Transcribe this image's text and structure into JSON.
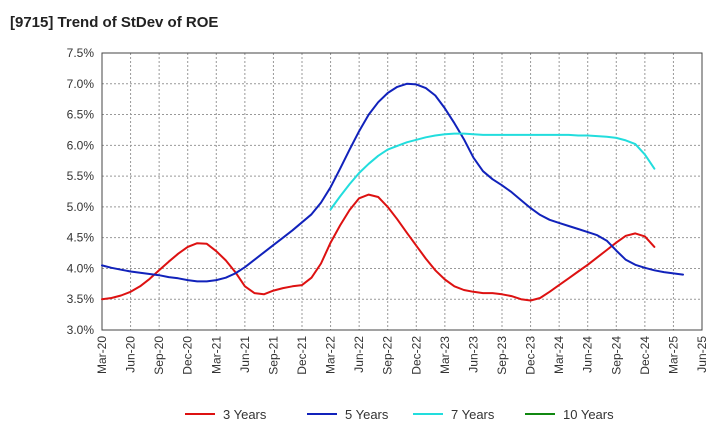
{
  "title": "[9715]  Trend of StDev of ROE",
  "chart_data": {
    "type": "line",
    "title": "[9715]  Trend of StDev of ROE",
    "xlabel": "",
    "ylabel": "",
    "x_ticks": [
      "Mar-20",
      "Jun-20",
      "Sep-20",
      "Dec-20",
      "Mar-21",
      "Jun-21",
      "Sep-21",
      "Dec-21",
      "Mar-22",
      "Jun-22",
      "Sep-22",
      "Dec-22",
      "Mar-23",
      "Jun-23",
      "Sep-23",
      "Dec-23",
      "Mar-24",
      "Jun-24",
      "Sep-24",
      "Dec-24",
      "Mar-25",
      "Jun-25"
    ],
    "y_ticks": [
      "3.0%",
      "3.5%",
      "4.0%",
      "4.5%",
      "5.0%",
      "5.5%",
      "6.0%",
      "6.5%",
      "7.0%",
      "7.5%"
    ],
    "ylim": [
      3.0,
      7.5
    ],
    "grid": true,
    "legend_position": "bottom",
    "series": [
      {
        "name": "3 Years",
        "color": "#dd1111",
        "start_index": 0,
        "values": [
          3.5,
          3.52,
          3.56,
          3.62,
          3.71,
          3.83,
          3.97,
          4.11,
          4.24,
          4.35,
          4.41,
          4.4,
          4.28,
          4.13,
          3.94,
          3.71,
          3.6,
          3.58,
          3.64,
          3.68,
          3.71,
          3.73,
          3.85,
          4.08,
          4.42,
          4.7,
          4.95,
          5.14,
          5.2,
          5.16,
          5.0,
          4.8,
          4.58,
          4.37,
          4.16,
          3.97,
          3.82,
          3.71,
          3.65,
          3.62,
          3.6,
          3.6,
          3.58,
          3.55,
          3.5,
          3.48,
          3.52,
          3.62,
          3.73,
          3.84,
          3.95,
          4.06,
          4.18,
          4.3,
          4.42,
          4.53,
          4.57,
          4.52,
          4.35
        ]
      },
      {
        "name": "5 Years",
        "color": "#1122bb",
        "start_index": 0,
        "values": [
          4.05,
          4.01,
          3.98,
          3.95,
          3.93,
          3.91,
          3.89,
          3.86,
          3.84,
          3.81,
          3.79,
          3.79,
          3.81,
          3.85,
          3.92,
          4.02,
          4.14,
          4.26,
          4.38,
          4.5,
          4.62,
          4.75,
          4.88,
          5.07,
          5.32,
          5.62,
          5.93,
          6.23,
          6.5,
          6.7,
          6.85,
          6.95,
          7.0,
          6.99,
          6.93,
          6.81,
          6.6,
          6.36,
          6.1,
          5.8,
          5.58,
          5.45,
          5.35,
          5.24,
          5.11,
          4.98,
          4.87,
          4.79,
          4.74,
          4.69,
          4.64,
          4.59,
          4.54,
          4.45,
          4.29,
          4.14,
          4.06,
          4.01,
          3.97,
          3.94,
          3.92,
          3.9
        ]
      },
      {
        "name": "7 Years",
        "color": "#22dddd",
        "start_index": 24,
        "values": [
          4.96,
          5.17,
          5.37,
          5.55,
          5.7,
          5.83,
          5.93,
          5.99,
          6.05,
          6.09,
          6.13,
          6.16,
          6.18,
          6.19,
          6.19,
          6.18,
          6.17,
          6.17,
          6.17,
          6.17,
          6.17,
          6.17,
          6.17,
          6.17,
          6.17,
          6.17,
          6.16,
          6.16,
          6.15,
          6.14,
          6.12,
          6.08,
          6.02,
          5.85,
          5.62
        ]
      },
      {
        "name": "10 Years",
        "color": "#118811",
        "start_index": 0,
        "values": []
      }
    ]
  }
}
